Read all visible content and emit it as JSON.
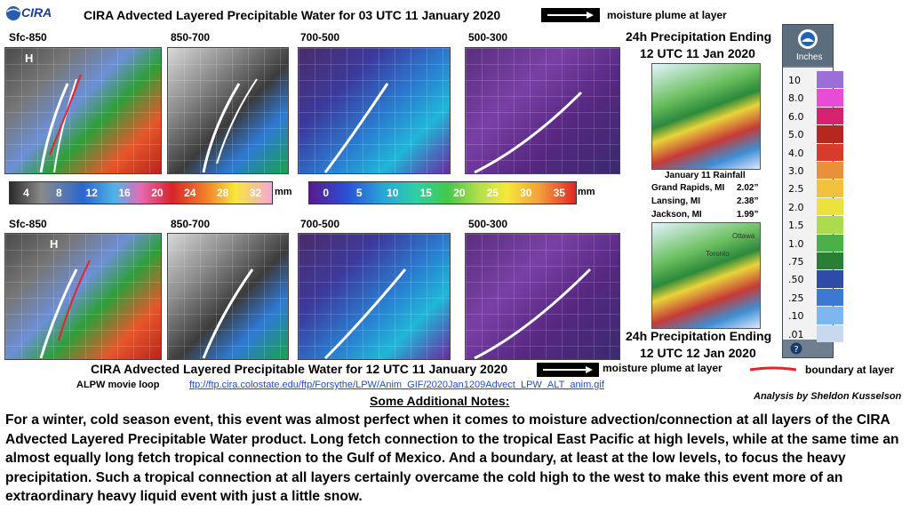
{
  "logo": {
    "text": "CIRA"
  },
  "header_top": {
    "title": "CIRA Advected Layered Precipitable Water for 03 UTC 11 January  2020",
    "legend_text": "moisture plume at layer"
  },
  "header_bottom": {
    "title": "CIRA Advected Layered Precipitable  Water for 12 UTC 11 January  2020",
    "legend_text": "moisture plume at layer",
    "boundary_text": "boundary at layer"
  },
  "top_panels": [
    "Sfc-850",
    "850-700",
    "700-500",
    "500-300"
  ],
  "bottom_panels": [
    "Sfc-850",
    "850-700",
    "700-500",
    "500-300"
  ],
  "map_marker": "H",
  "colorbar_left": {
    "ticks": [
      "4",
      "8",
      "12",
      "16",
      "20",
      "24",
      "28",
      "32"
    ],
    "unit": "mm"
  },
  "colorbar_right": {
    "ticks": [
      "0",
      "5",
      "10",
      "15",
      "20",
      "25",
      "30",
      "35"
    ],
    "unit": "mm"
  },
  "precip_top": {
    "line1": "24h Precipitation  Ending",
    "line2": "12 UTC 11 Jan 2020"
  },
  "precip_bottom": {
    "line1": "24h Precipitation  Ending",
    "line2": "12 UTC 12 Jan 2020"
  },
  "rainfall": {
    "title": "January 11 Rainfall",
    "rows": [
      {
        "place": "Grand Rapids, MI",
        "value": "2.02”"
      },
      {
        "place": "Lansing, MI",
        "value": "2.38”"
      },
      {
        "place": "Jackson, MI",
        "value": "1.99”"
      }
    ]
  },
  "map_labels": {
    "ottawa": "Ottawa",
    "toronto": "Toronto"
  },
  "precip_scale": {
    "unit": "Inches",
    "labels": [
      "10",
      "8.0",
      "6.0",
      "5.0",
      "4.0",
      "3.0",
      "2.5",
      "2.0",
      "1.5",
      "1.0",
      ".75",
      ".50",
      ".25",
      ".10",
      ".01"
    ],
    "colors": [
      "#9b6fd8",
      "#e84bd6",
      "#d6226f",
      "#b4281f",
      "#d83a2c",
      "#e8913a",
      "#f2c23e",
      "#ece23e",
      "#aedb4a",
      "#4bb04a",
      "#2a7f36",
      "#2e4ba8",
      "#3b79d2",
      "#7cb8ef",
      "#c8d8ee"
    ]
  },
  "movie_loop": {
    "label": "ALPW movie loop",
    "url": "ftp://ftp.cira.colostate.edu/ftp/Forsythe/LPW/Anim_GIF/2020Jan1209Advect_LPW_ALT_anim.gif"
  },
  "author": "Analysis by Sheldon Kusselson",
  "notes": {
    "title": "Some Additional Notes:",
    "body": "For a winter, cold season event, this event was almost perfect when it comes to moisture advection/connection at all layers of the CIRA Advected Layered Precipitable Water product. Long fetch connection to the tropical East Pacific at high levels, while at the same time an almost equally long fetch tropical connection to the Gulf of Mexico. And a boundary, at least at the low levels, to focus the heavy precipitation. Such a tropical connection at all layers certainly overcame the cold high to the west to make this event more of an extraordinary heavy liquid event with just a little snow."
  },
  "colors": {
    "link": "#1f4fc4",
    "boundary_line": "#e8242a",
    "plume": "#ffffff"
  },
  "icons": {
    "noaa_logo": "noaa-logo-icon",
    "help": "question-icon"
  }
}
